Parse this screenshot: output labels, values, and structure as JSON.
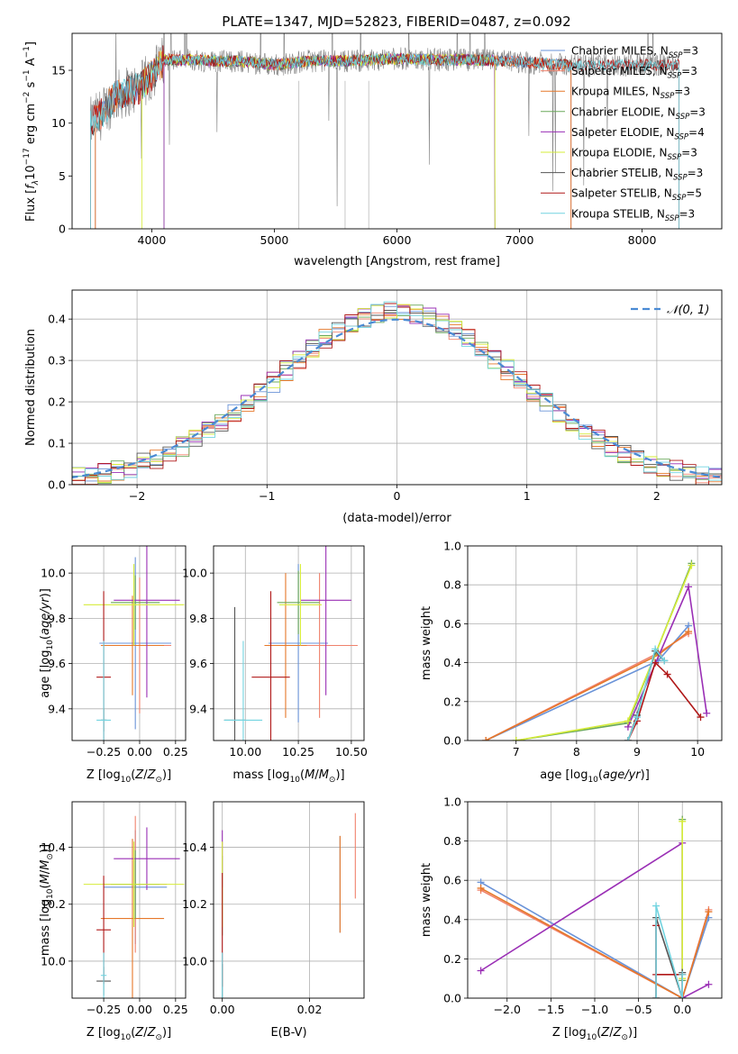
{
  "figure_title": "PLATE=1347, MJD=52823, FIBERID=0487, z=0.092",
  "colors": {
    "Chabrier MILES": "#6a93d8",
    "Salpeter MILES": "#f0826c",
    "Kroupa MILES": "#e6782a",
    "Chabrier ELODIE": "#6aa85a",
    "Salpeter ELODIE": "#9a2fb5",
    "Kroupa ELODIE": "#d6ec3a",
    "Chabrier STELIB": "#555555",
    "Salpeter STELIB": "#b01818",
    "Kroupa STELIB": "#72d4e0",
    "gray_spectrum": "#808080",
    "gauss_line": "#4a8ad4"
  },
  "chart_data": [
    {
      "id": "spectrum",
      "type": "line",
      "xlabel": "wavelength [Angstrom, rest frame]",
      "ylabel": "Flux [f_λ10^-17 erg cm^-2 s^-1 A^-1]",
      "xlim": [
        3350,
        8650
      ],
      "ylim": [
        0,
        18.5
      ],
      "xticks": [
        4000,
        5000,
        6000,
        7000,
        8000
      ],
      "yticks": [
        0,
        5,
        10,
        15
      ],
      "legend_position": "upper right",
      "legend": [
        {
          "model": "Chabrier MILES",
          "label": "Chabrier MILES, N",
          "sub": "SSP",
          "n": "=3"
        },
        {
          "model": "Salpeter MILES",
          "label": "Salpeter MILES, N",
          "sub": "SSP",
          "n": "=3"
        },
        {
          "model": "Kroupa MILES",
          "label": "Kroupa MILES, N",
          "sub": "SSP",
          "n": "=3"
        },
        {
          "model": "Chabrier ELODIE",
          "label": "Chabrier ELODIE, N",
          "sub": "SSP",
          "n": "=3"
        },
        {
          "model": "Salpeter ELODIE",
          "label": "Salpeter ELODIE, N",
          "sub": "SSP",
          "n": "=4"
        },
        {
          "model": "Kroupa ELODIE",
          "label": "Kroupa ELODIE, N",
          "sub": "SSP",
          "n": "=3"
        },
        {
          "model": "Chabrier STELIB",
          "label": "Chabrier STELIB, N",
          "sub": "SSP",
          "n": "=3"
        },
        {
          "model": "Salpeter STELIB",
          "label": "Salpeter STELIB, N",
          "sub": "SSP",
          "n": "=5"
        },
        {
          "model": "Kroupa STELIB",
          "label": "Kroupa STELIB, N",
          "sub": "SSP",
          "n": "=3"
        }
      ],
      "observed_flux_shape": {
        "x": [
          3500,
          3600,
          3700,
          3800,
          3900,
          4000,
          4100,
          4300,
          4500,
          4800,
          5000,
          5300,
          5600,
          6000,
          6300,
          6600,
          7000,
          7400
        ],
        "y": [
          10.0,
          11.0,
          12.5,
          13.0,
          13.3,
          14.5,
          16.0,
          16.0,
          15.9,
          15.8,
          15.5,
          15.9,
          15.9,
          16.1,
          16.0,
          16.0,
          15.8,
          15.5
        ]
      },
      "model_ranges": {
        "Chabrier MILES": [
          3540,
          7420
        ],
        "Salpeter MILES": [
          3540,
          7420
        ],
        "Kroupa MILES": [
          3540,
          7420
        ],
        "Chabrier ELODIE": [
          4100,
          6800
        ],
        "Salpeter ELODIE": [
          4100,
          6800
        ],
        "Kroupa ELODIE": [
          3920,
          6800
        ],
        "Chabrier STELIB": [
          3500,
          8300
        ],
        "Salpeter STELIB": [
          3500,
          8300
        ],
        "Kroupa STELIB": [
          3500,
          8300
        ]
      }
    },
    {
      "id": "residual_histogram",
      "type": "histogram",
      "xlabel": "(data-model)/error",
      "ylabel": "Normed distribution",
      "xlim": [
        -2.5,
        2.5
      ],
      "ylim": [
        0,
        0.47
      ],
      "xticks": [
        -2,
        -1,
        0,
        1,
        2
      ],
      "yticks": [
        0.0,
        0.1,
        0.2,
        0.3,
        0.4
      ],
      "grid": true,
      "legend_position": "upper right",
      "legend": [
        {
          "label": "𝒩(0, 1)",
          "style": "dashed"
        }
      ],
      "reference_curve": "standard normal density"
    },
    {
      "id": "age_vs_Z",
      "type": "errorbar",
      "xlabel": "Z [log10(Z/Z⊙)]",
      "ylabel": "age [log10(age/yr)]",
      "xlim": [
        -0.47,
        0.32
      ],
      "ylim": [
        9.26,
        10.12
      ],
      "xticks": [
        -0.25,
        0.0,
        0.25
      ],
      "yticks": [
        9.4,
        9.6,
        9.8,
        10.0
      ],
      "grid": true,
      "points": [
        {
          "model": "Chabrier MILES",
          "x": -0.03,
          "xerr": 0.25,
          "y": 9.69,
          "yerr": 0.38
        },
        {
          "model": "Salpeter MILES",
          "x": 0.0,
          "xerr": 0.22,
          "y": 9.68,
          "yerr": 0.3
        },
        {
          "model": "Kroupa MILES",
          "x": -0.05,
          "xerr": 0.22,
          "y": 9.68,
          "yerr": 0.22
        },
        {
          "model": "Chabrier ELODIE",
          "x": -0.03,
          "xerr": 0.17,
          "y": 9.87,
          "yerr": 0.12
        },
        {
          "model": "Salpeter ELODIE",
          "x": 0.05,
          "xerr": 0.23,
          "y": 9.88,
          "yerr": 0.43
        },
        {
          "model": "Kroupa ELODIE",
          "x": -0.04,
          "xerr": 0.35,
          "y": 9.86,
          "yerr": 0.18
        },
        {
          "model": "Chabrier STELIB",
          "x": -0.25,
          "xerr": 0.02,
          "y": 9.35,
          "yerr": 0.05
        },
        {
          "model": "Salpeter STELIB",
          "x": -0.25,
          "xerr": 0.05,
          "y": 9.54,
          "yerr": 0.38
        },
        {
          "model": "Kroupa STELIB",
          "x": -0.25,
          "xerr": 0.05,
          "y": 9.35,
          "yerr": 0.35
        }
      ]
    },
    {
      "id": "age_vs_mass",
      "type": "errorbar",
      "xlabel": "mass [log10(M/M⊙)]",
      "ylabel": "",
      "xlim": [
        9.85,
        10.56
      ],
      "ylim": [
        9.26,
        10.12
      ],
      "xticks": [
        10.0,
        10.25,
        10.5
      ],
      "yticks": [
        9.4,
        9.6,
        9.8,
        10.0
      ],
      "grid": true,
      "points": [
        {
          "model": "Chabrier MILES",
          "x": 10.25,
          "xerr": 0.14,
          "y": 9.69,
          "yerr": 0.35
        },
        {
          "model": "Salpeter MILES",
          "x": 10.35,
          "xerr": 0.18,
          "y": 9.68,
          "yerr": 0.32
        },
        {
          "model": "Kroupa MILES",
          "x": 10.19,
          "xerr": 0.1,
          "y": 9.68,
          "yerr": 0.32
        },
        {
          "model": "Chabrier ELODIE",
          "x": 10.25,
          "xerr": 0.1,
          "y": 9.87,
          "yerr": 0.14
        },
        {
          "model": "Salpeter ELODIE",
          "x": 10.38,
          "xerr": 0.12,
          "y": 9.88,
          "yerr": 0.42
        },
        {
          "model": "Kroupa ELODIE",
          "x": 10.26,
          "xerr": 0.1,
          "y": 9.86,
          "yerr": 0.18
        },
        {
          "model": "Chabrier STELIB",
          "x": 9.95,
          "xerr": 0.05,
          "y": 9.35,
          "yerr": 0.5
        },
        {
          "model": "Salpeter STELIB",
          "x": 10.12,
          "xerr": 0.09,
          "y": 9.54,
          "yerr": 0.38
        },
        {
          "model": "Kroupa STELIB",
          "x": 9.99,
          "xerr": 0.09,
          "y": 9.35,
          "yerr": 0.35
        }
      ]
    },
    {
      "id": "weight_vs_age",
      "type": "line",
      "xlabel": "age [log10(age/yr)]",
      "ylabel": "mass weight",
      "xlim": [
        6.2,
        10.4
      ],
      "ylim": [
        0,
        1.0
      ],
      "xticks": [
        7,
        8,
        9,
        10
      ],
      "yticks": [
        0.0,
        0.2,
        0.4,
        0.6,
        0.8,
        1.0
      ],
      "grid": true,
      "series": [
        {
          "model": "Chabrier MILES",
          "x": [
            6.5,
            9.35,
            9.85
          ],
          "y": [
            0.0,
            0.41,
            0.59
          ]
        },
        {
          "model": "Salpeter MILES",
          "x": [
            6.5,
            9.35,
            9.85
          ],
          "y": [
            0.0,
            0.45,
            0.55
          ]
        },
        {
          "model": "Kroupa MILES",
          "x": [
            6.5,
            9.35,
            9.85
          ],
          "y": [
            0.0,
            0.44,
            0.56
          ]
        },
        {
          "model": "Chabrier ELODIE",
          "x": [
            7.0,
            8.85,
            9.9
          ],
          "y": [
            0.0,
            0.09,
            0.91
          ]
        },
        {
          "model": "Salpeter ELODIE",
          "x": [
            8.85,
            9.85,
            10.15
          ],
          "y": [
            0.07,
            0.79,
            0.14
          ]
        },
        {
          "model": "Kroupa ELODIE",
          "x": [
            7.0,
            8.85,
            9.9
          ],
          "y": [
            0.0,
            0.1,
            0.9
          ]
        },
        {
          "model": "Chabrier STELIB",
          "x": [
            8.85,
            9.0,
            9.3,
            9.45
          ],
          "y": [
            0.0,
            0.13,
            0.46,
            0.41
          ]
        },
        {
          "model": "Salpeter STELIB",
          "x": [
            8.85,
            9.0,
            9.3,
            9.5,
            10.05
          ],
          "y": [
            0.0,
            0.1,
            0.4,
            0.34,
            0.12
          ]
        },
        {
          "model": "Kroupa STELIB",
          "x": [
            8.85,
            9.0,
            9.3,
            9.45
          ],
          "y": [
            0.0,
            0.12,
            0.47,
            0.41
          ]
        }
      ]
    },
    {
      "id": "mass_vs_Z",
      "type": "errorbar",
      "xlabel": "Z [log10(Z/Z⊙)]",
      "ylabel": "mass [log10(M/M⊙)]",
      "xlim": [
        -0.47,
        0.32
      ],
      "ylim": [
        9.87,
        10.56
      ],
      "xticks": [
        -0.25,
        0.0,
        0.25
      ],
      "yticks": [
        10.0,
        10.2,
        10.4
      ],
      "grid": true,
      "points": [
        {
          "model": "Chabrier MILES",
          "x": -0.03,
          "xerr": 0.22,
          "y": 10.26,
          "yerr": 0.2
        },
        {
          "model": "Salpeter MILES",
          "x": -0.03,
          "xerr": 0.22,
          "y": 10.27,
          "yerr": 0.24
        },
        {
          "model": "Kroupa MILES",
          "x": -0.05,
          "xerr": 0.22,
          "y": 10.15,
          "yerr": 0.28
        },
        {
          "model": "Chabrier ELODIE",
          "x": -0.03,
          "xerr": 0.17,
          "y": 10.27,
          "yerr": 0.12
        },
        {
          "model": "Salpeter ELODIE",
          "x": 0.05,
          "xerr": 0.23,
          "y": 10.36,
          "yerr": 0.11
        },
        {
          "model": "Kroupa ELODIE",
          "x": -0.04,
          "xerr": 0.35,
          "y": 10.27,
          "yerr": 0.15
        },
        {
          "model": "Chabrier STELIB",
          "x": -0.25,
          "xerr": 0.05,
          "y": 9.93,
          "yerr": 0.05
        },
        {
          "model": "Salpeter STELIB",
          "x": -0.25,
          "xerr": 0.05,
          "y": 10.11,
          "yerr": 0.19
        },
        {
          "model": "Kroupa STELIB",
          "x": -0.25,
          "xerr": 0.02,
          "y": 9.95,
          "yerr": 0.08
        }
      ]
    },
    {
      "id": "ebv",
      "type": "errorbar",
      "xlabel": "E(B-V)",
      "ylabel": "",
      "xlim": [
        -0.002,
        0.0325
      ],
      "ylim": [
        9.87,
        10.56
      ],
      "xticks": [
        0.0,
        0.02
      ],
      "yticks": [
        10.0,
        10.2,
        10.4
      ],
      "grid": true,
      "points": [
        {
          "model": "Chabrier MILES",
          "x": 0.027,
          "xerr": 0,
          "y": 10.27,
          "yerr": 0.17
        },
        {
          "model": "Salpeter MILES",
          "x": 0.0305,
          "xerr": 0,
          "y": 10.37,
          "yerr": 0.15
        },
        {
          "model": "Kroupa MILES",
          "x": 0.027,
          "xerr": 0,
          "y": 10.27,
          "yerr": 0.17
        },
        {
          "model": "Chabrier ELODIE",
          "x": 0.0,
          "xerr": 0,
          "y": 10.23,
          "yerr": 0.14
        },
        {
          "model": "Salpeter ELODIE",
          "x": 0.0,
          "xerr": 0,
          "y": 10.36,
          "yerr": 0.1
        },
        {
          "model": "Kroupa ELODIE",
          "x": 0.0,
          "xerr": 0,
          "y": 10.27,
          "yerr": 0.15
        },
        {
          "model": "Chabrier STELIB",
          "x": 0.0,
          "xerr": 0,
          "y": 9.93,
          "yerr": 0.06
        },
        {
          "model": "Salpeter STELIB",
          "x": 0.0,
          "xerr": 0,
          "y": 10.11,
          "yerr": 0.2
        },
        {
          "model": "Kroupa STELIB",
          "x": 0.0,
          "xerr": 0,
          "y": 9.95,
          "yerr": 0.08
        }
      ]
    },
    {
      "id": "weight_vs_Z",
      "type": "line",
      "xlabel": "Z [log10(Z/Z⊙)]",
      "ylabel": "mass weight",
      "xlim": [
        -2.45,
        0.45
      ],
      "ylim": [
        0,
        1.0
      ],
      "xticks": [
        -2.0,
        -1.5,
        -1.0,
        -0.5,
        0.0
      ],
      "yticks": [
        0.0,
        0.2,
        0.4,
        0.6,
        0.8,
        1.0
      ],
      "grid": true,
      "series": [
        {
          "model": "Chabrier MILES",
          "x": [
            -2.3,
            0.0,
            0.3
          ],
          "y": [
            0.59,
            0.0,
            0.41
          ]
        },
        {
          "model": "Salpeter MILES",
          "x": [
            -2.3,
            0.0,
            0.3
          ],
          "y": [
            0.55,
            0.0,
            0.45
          ]
        },
        {
          "model": "Kroupa MILES",
          "x": [
            -2.3,
            0.0,
            0.3
          ],
          "y": [
            0.56,
            0.0,
            0.44
          ]
        },
        {
          "model": "Chabrier ELODIE",
          "x": [
            0.0,
            0.0
          ],
          "y": [
            0.09,
            0.91
          ]
        },
        {
          "model": "Salpeter ELODIE",
          "x": [
            -2.3,
            0.0,
            0.0,
            0.3
          ],
          "y": [
            0.14,
            0.79,
            0.0,
            0.07
          ]
        },
        {
          "model": "Kroupa ELODIE",
          "x": [
            0.0,
            0.0
          ],
          "y": [
            0.1,
            0.9
          ]
        },
        {
          "model": "Chabrier STELIB",
          "x": [
            -0.3,
            -0.3,
            0.0,
            0.0
          ],
          "y": [
            0.0,
            0.41,
            0.0,
            0.13
          ]
        },
        {
          "model": "Salpeter STELIB",
          "x": [
            -0.3,
            -0.3,
            -0.3,
            0.0,
            0.0
          ],
          "y": [
            0.0,
            0.37,
            0.12,
            0.12,
            0.0
          ]
        },
        {
          "model": "Kroupa STELIB",
          "x": [
            -0.3,
            -0.3,
            0.0,
            0.0
          ],
          "y": [
            0.0,
            0.47,
            0.0,
            0.12
          ]
        }
      ]
    }
  ]
}
